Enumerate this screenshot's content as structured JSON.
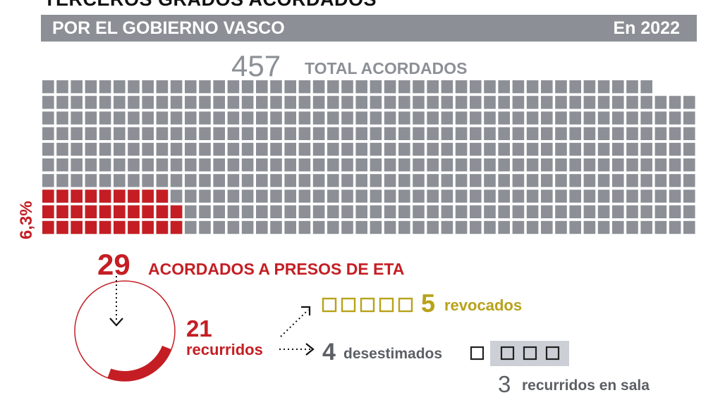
{
  "title": "TERCEROS GRADOS ACORDADOS",
  "subtitle_left": "POR EL GOBIERNO VASCO",
  "subtitle_right": "En 2022",
  "total": {
    "value": "457",
    "label": "TOTAL ACORDADOS"
  },
  "eta": {
    "value": "29",
    "label": "ACORDADOS A PRESOS DE ETA",
    "percent": "6,3%"
  },
  "recurridos": {
    "value": "21",
    "label": "recurridos"
  },
  "revocados": {
    "value": "5",
    "label": "revocados"
  },
  "desestimados": {
    "value": "4",
    "label": "desestimados"
  },
  "recurridos_sala": {
    "value": "3",
    "label": "recurridos en sala"
  },
  "colors": {
    "gray": "#8c9096",
    "red": "#c41e24",
    "gold": "#b8a21a",
    "dark": "#5c5f64",
    "light": "#ccd0d6"
  },
  "chart_data": {
    "type": "waffle",
    "total": 457,
    "series": [
      {
        "name": "ACORDADOS A PRESOS DE ETA",
        "value": 29,
        "percent": 6.3
      },
      {
        "name": "TOTAL ACORDADOS",
        "value": 457
      }
    ],
    "breakdown": {
      "acordados_eta": 29,
      "recurridos": 21,
      "revocados": 5,
      "desestimados": 4,
      "recurridos_en_sala": 3
    }
  }
}
